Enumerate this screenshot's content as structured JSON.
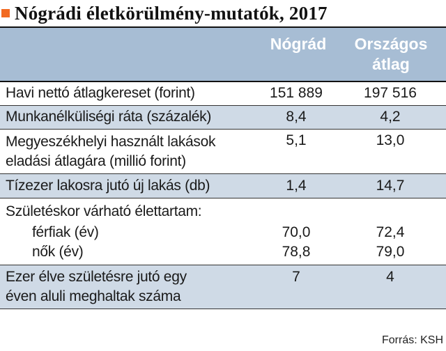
{
  "title": "Nógrádi életkörülmény-mutatók, 2017",
  "columns": {
    "county": [
      "Nógrád"
    ],
    "national": [
      "Országos",
      "átlag"
    ]
  },
  "rows": [
    {
      "label": "Havi nettó átlagkereset (forint)",
      "county": "151 889",
      "national": "197 516"
    },
    {
      "label": "Munkanélküliségi ráta (százalék)",
      "county": "8,4",
      "national": "4,2"
    },
    {
      "label_lines": [
        "Megyeszékhelyi használt lakások",
        "eladási átlagára (millió forint)"
      ],
      "county": "5,1",
      "national": "13,0"
    },
    {
      "label": "Tízezer lakosra jutó új lakás (db)",
      "county": "1,4",
      "national": "14,7"
    },
    {
      "label": "Születéskor várható élettartam:",
      "sub": [
        {
          "label": "férfiak (év)",
          "county": "70,0",
          "national": "72,4"
        },
        {
          "label": "nők (év)",
          "county": "78,8",
          "national": "79,0"
        }
      ]
    },
    {
      "label_lines": [
        "Ezer élve születésre jutó egy",
        "éven aluli meghaltak száma"
      ],
      "county": "7",
      "national": "4"
    }
  ],
  "source": "Forrás: KSH",
  "colors": {
    "accent": "#f26a21",
    "header_bg": "#a7bdd4",
    "shade_bg": "#cfdae6"
  }
}
